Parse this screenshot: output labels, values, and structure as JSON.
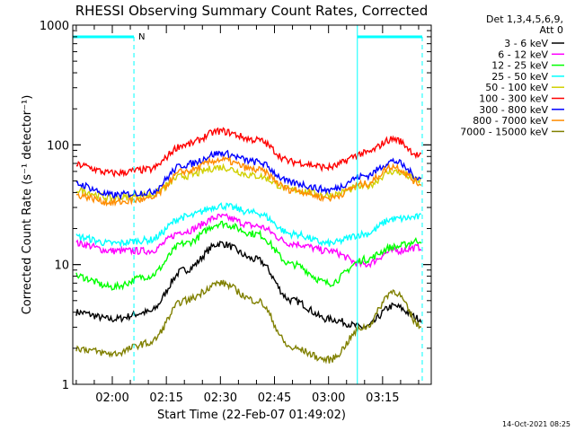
{
  "chart_data": {
    "type": "line",
    "title": "RHESSI Observing Summary Count Rates, Corrected",
    "xlabel": "Start Time (22-Feb-07 01:49:02)",
    "ylabel": "Corrected Count Rate (s⁻¹ detector⁻¹)",
    "y_scale": "log",
    "xlim": [
      "01:49:02",
      "03:28:30"
    ],
    "ylim": [
      1,
      1000
    ],
    "x_ticks": [
      "02:00",
      "02:15",
      "02:30",
      "02:45",
      "03:00",
      "03:15"
    ],
    "y_ticks": [
      "1",
      "10",
      "100",
      "1000"
    ],
    "legend_header": [
      "Det 1,3,4,5,6,9,",
      "Att 0"
    ],
    "legend_position": "right",
    "footer_date": "14-Oct-2021 08:25",
    "night_marker_label": "N",
    "night_bars": [
      {
        "start": "01:49:02",
        "end": "02:06:00"
      },
      {
        "start": "03:08:00",
        "end": "03:26:00"
      }
    ],
    "x_samples": [
      "01:50",
      "02:00",
      "02:10",
      "02:20",
      "02:30",
      "02:40",
      "02:50",
      "03:00",
      "03:10",
      "03:18",
      "03:26"
    ],
    "series": [
      {
        "name": "3 - 6 keV",
        "color": "#000000",
        "values": [
          4,
          3.5,
          4,
          9,
          15,
          11,
          5,
          3.5,
          3,
          4.5,
          3.5
        ]
      },
      {
        "name": "6 - 12 keV",
        "color": "#ff00ff",
        "values": [
          15,
          13,
          13,
          19,
          25,
          21,
          15,
          13,
          10,
          13,
          14
        ]
      },
      {
        "name": "12 - 25 keV",
        "color": "#00ff00",
        "values": [
          8,
          6.5,
          8,
          15,
          22,
          18,
          10,
          7,
          11,
          14,
          16
        ]
      },
      {
        "name": "25 - 50 keV",
        "color": "#00ffff",
        "values": [
          17,
          15,
          16,
          25,
          31,
          27,
          18,
          15,
          18,
          24,
          25
        ]
      },
      {
        "name": "50 - 100 keV",
        "color": "#d0d000",
        "values": [
          42,
          36,
          38,
          55,
          65,
          55,
          42,
          38,
          45,
          60,
          50
        ]
      },
      {
        "name": "100 - 300 keV",
        "color": "#ff0000",
        "values": [
          68,
          58,
          62,
          100,
          130,
          110,
          72,
          65,
          85,
          112,
          80
        ]
      },
      {
        "name": "300 - 800 keV",
        "color": "#0000ff",
        "values": [
          47,
          38,
          40,
          68,
          85,
          72,
          48,
          42,
          55,
          73,
          52
        ]
      },
      {
        "name": "800 - 7000 keV",
        "color": "#ff8c00",
        "values": [
          38,
          33,
          35,
          60,
          75,
          62,
          42,
          36,
          47,
          66,
          47
        ]
      },
      {
        "name": "7000 - 15000 keV",
        "color": "#808000",
        "values": [
          2,
          1.8,
          2.2,
          5,
          7,
          5,
          2,
          1.6,
          3,
          6,
          3
        ]
      }
    ]
  }
}
